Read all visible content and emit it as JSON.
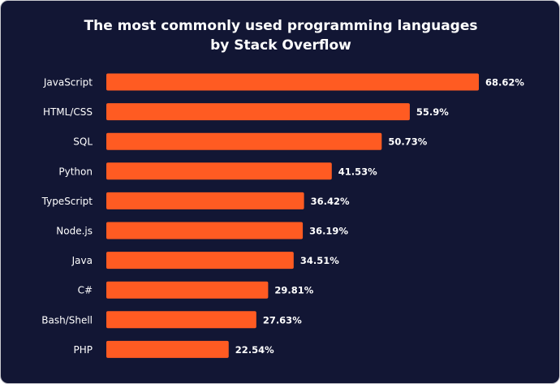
{
  "chart_data": {
    "type": "bar",
    "orientation": "horizontal",
    "title": "The most commonly used programming languages by Stack Overflow",
    "categories": [
      "JavaScript",
      "HTML/CSS",
      "SQL",
      "Python",
      "TypeScript",
      "Node.js",
      "Java",
      "C#",
      "Bash/Shell",
      "PHP"
    ],
    "values": [
      68.62,
      55.9,
      50.73,
      41.53,
      36.42,
      36.19,
      34.51,
      29.81,
      27.63,
      22.54
    ],
    "value_labels": [
      "68.62%",
      "55.9%",
      "50.73%",
      "41.53%",
      "36.42%",
      "36.19%",
      "34.51%",
      "29.81%",
      "27.63%",
      "22.54%"
    ],
    "color": "#ff5b22"
  }
}
